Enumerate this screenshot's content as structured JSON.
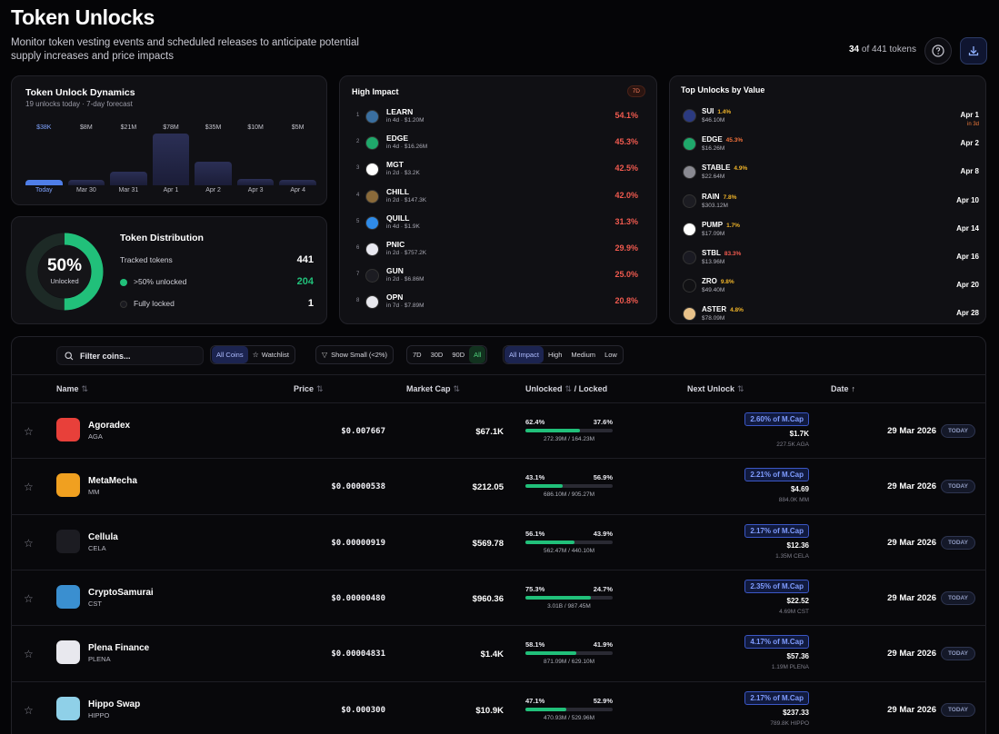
{
  "header": {
    "title": "Token Unlocks",
    "subtitle": "Monitor token vesting events and scheduled releases to anticipate potential supply increases and price impacts",
    "count_shown": "34",
    "count_rest": "of 441 tokens",
    "help_icon": "question-icon",
    "download_icon": "download-icon"
  },
  "dynamics": {
    "title": "Token Unlock Dynamics",
    "subtitle": "19 unlocks today · 7-day forecast",
    "bars": [
      {
        "value": "$38K",
        "label": "Today",
        "level": 0.1,
        "today": true
      },
      {
        "value": "$8M",
        "label": "Mar 30",
        "level": 0.09
      },
      {
        "value": "$21M",
        "label": "Mar 31",
        "level": 0.27
      },
      {
        "value": "$78M",
        "label": "Apr 1",
        "level": 1.0
      },
      {
        "value": "$35M",
        "label": "Apr 2",
        "level": 0.45
      },
      {
        "value": "$10M",
        "label": "Apr 3",
        "level": 0.13
      },
      {
        "value": "$5M",
        "label": "Apr 4",
        "level": 0.1
      }
    ]
  },
  "distribution": {
    "title": "Token Distribution",
    "ring_pct": "50%",
    "ring_label": "Unlocked",
    "ring_fraction": 0.5,
    "rows": [
      {
        "label": "Tracked tokens",
        "value": "441"
      },
      {
        "label": ">50% unlocked",
        "value": "204"
      },
      {
        "label": "Fully locked",
        "value": "1"
      }
    ],
    "accent": "#21c07a"
  },
  "high_impact": {
    "title": "High Impact",
    "badge": "7D",
    "items": [
      {
        "rank": "1",
        "name": "LEARN",
        "sub": "in 4d · $1.20M",
        "pct": "54.1%",
        "color": "#3a6fa0"
      },
      {
        "rank": "2",
        "name": "EDGE",
        "sub": "in 4d · $16.26M",
        "pct": "45.3%",
        "color": "#1fa86b"
      },
      {
        "rank": "3",
        "name": "MGT",
        "sub": "in 2d · $3.2K",
        "pct": "42.5%",
        "color": "#ffffff"
      },
      {
        "rank": "4",
        "name": "CHILL",
        "sub": "in 2d · $147.3K",
        "pct": "42.0%",
        "color": "#8a6a3a"
      },
      {
        "rank": "5",
        "name": "QUILL",
        "sub": "in 4d · $1.9K",
        "pct": "31.3%",
        "color": "#2f8be8"
      },
      {
        "rank": "6",
        "name": "PNIC",
        "sub": "in 2d · $757.2K",
        "pct": "29.9%",
        "color": "#e8e8f0"
      },
      {
        "rank": "7",
        "name": "GUN",
        "sub": "in 2d · $6.86M",
        "pct": "25.0%",
        "color": "#1c1c22"
      },
      {
        "rank": "8",
        "name": "OPN",
        "sub": "in 7d · $7.89M",
        "pct": "20.8%",
        "color": "#e8e8ee"
      }
    ]
  },
  "top_value": {
    "title": "Top Unlocks by Value",
    "items": [
      {
        "name": "SUI",
        "pct": "1.4%",
        "pct_color": "#f0b429",
        "value": "$46.10M",
        "date": "Apr 1",
        "note": "in 3d",
        "color": "#2b3a80"
      },
      {
        "name": "EDGE",
        "pct": "45.3%",
        "pct_color": "#f0703a",
        "value": "$16.26M",
        "date": "Apr 2",
        "color": "#1fa86b"
      },
      {
        "name": "STABLE",
        "pct": "4.9%",
        "pct_color": "#f0b429",
        "value": "$22.64M",
        "date": "Apr 8",
        "color": "#8a8a92"
      },
      {
        "name": "RAIN",
        "pct": "7.8%",
        "pct_color": "#f0b429",
        "value": "$303.12M",
        "date": "Apr 10",
        "color": "#1c1c22"
      },
      {
        "name": "PUMP",
        "pct": "1.7%",
        "pct_color": "#f0b429",
        "value": "$17.09M",
        "date": "Apr 14",
        "color": "#ffffff"
      },
      {
        "name": "STBL",
        "pct": "83.3%",
        "pct_color": "#f05a4f",
        "value": "$13.96M",
        "date": "Apr 16",
        "color": "#1a1a22"
      },
      {
        "name": "ZRO",
        "pct": "9.8%",
        "pct_color": "#f0b429",
        "value": "$49.40M",
        "date": "Apr 20",
        "color": "#111114"
      },
      {
        "name": "ASTER",
        "pct": "4.8%",
        "pct_color": "#f0b429",
        "value": "$78.09M",
        "date": "Apr 28",
        "color": "#e8c28a"
      }
    ]
  },
  "filters": {
    "search_placeholder": "Filter coins...",
    "scope": [
      "All Coins",
      "Watchlist"
    ],
    "show_small": "Show Small (<2%)",
    "ranges": [
      "7D",
      "30D",
      "90D",
      "All"
    ],
    "impact": [
      "All Impact",
      "High",
      "Medium",
      "Low"
    ]
  },
  "table": {
    "columns": {
      "name": "Name",
      "price": "Price",
      "mcap": "Market Cap",
      "unlocked": "Unlocked",
      "locked": "/ Locked",
      "next": "Next Unlock",
      "date": "Date"
    },
    "rows": [
      {
        "name": "Agoradex",
        "symbol": "AGA",
        "price": "$0.007667",
        "mcap": "$67.1K",
        "unlocked": "62.4%",
        "locked": "37.6%",
        "fill": 0.624,
        "amounts": "272.39M / 164.23M",
        "mcap_pct": "2.60% of M.Cap",
        "next_value": "$1.7K",
        "next_tokens": "227.5K AGA",
        "date": "29 Mar 2026",
        "badge": "TODAY",
        "color": "#e8403a"
      },
      {
        "name": "MetaMecha",
        "symbol": "MM",
        "price": "$0.00000538",
        "mcap": "$212.05",
        "unlocked": "43.1%",
        "locked": "56.9%",
        "fill": 0.431,
        "amounts": "686.10M / 905.27M",
        "mcap_pct": "2.21% of M.Cap",
        "next_value": "$4.69",
        "next_tokens": "884.0K MM",
        "date": "29 Mar 2026",
        "badge": "TODAY",
        "color": "#f0a020"
      },
      {
        "name": "Cellula",
        "symbol": "CELA",
        "price": "$0.00000919",
        "mcap": "$569.78",
        "unlocked": "56.1%",
        "locked": "43.9%",
        "fill": 0.561,
        "amounts": "562.47M / 440.10M",
        "mcap_pct": "2.17% of M.Cap",
        "next_value": "$12.36",
        "next_tokens": "1.35M CELA",
        "date": "29 Mar 2026",
        "badge": "TODAY",
        "color": "#1c1c22"
      },
      {
        "name": "CryptoSamurai",
        "symbol": "CST",
        "price": "$0.00000480",
        "mcap": "$960.36",
        "unlocked": "75.3%",
        "locked": "24.7%",
        "fill": 0.753,
        "amounts": "3.01B / 987.45M",
        "mcap_pct": "2.35% of M.Cap",
        "next_value": "$22.52",
        "next_tokens": "4.69M CST",
        "date": "29 Mar 2026",
        "badge": "TODAY",
        "color": "#3a8fd0"
      },
      {
        "name": "Plena Finance",
        "symbol": "PLENA",
        "price": "$0.00004831",
        "mcap": "$1.4K",
        "unlocked": "58.1%",
        "locked": "41.9%",
        "fill": 0.581,
        "amounts": "871.09M / 629.10M",
        "mcap_pct": "4.17% of M.Cap",
        "next_value": "$57.36",
        "next_tokens": "1.19M PLENA",
        "date": "29 Mar 2026",
        "badge": "TODAY",
        "color": "#e8e8ee"
      },
      {
        "name": "Hippo Swap",
        "symbol": "HIPPO",
        "price": "$0.000300",
        "mcap": "$10.9K",
        "unlocked": "47.1%",
        "locked": "52.9%",
        "fill": 0.471,
        "amounts": "470.93M / 529.96M",
        "mcap_pct": "2.17% of M.Cap",
        "next_value": "$237.33",
        "next_tokens": "789.8K HIPPO",
        "date": "29 Mar 2026",
        "badge": "TODAY",
        "color": "#8fd0e8"
      }
    ]
  }
}
